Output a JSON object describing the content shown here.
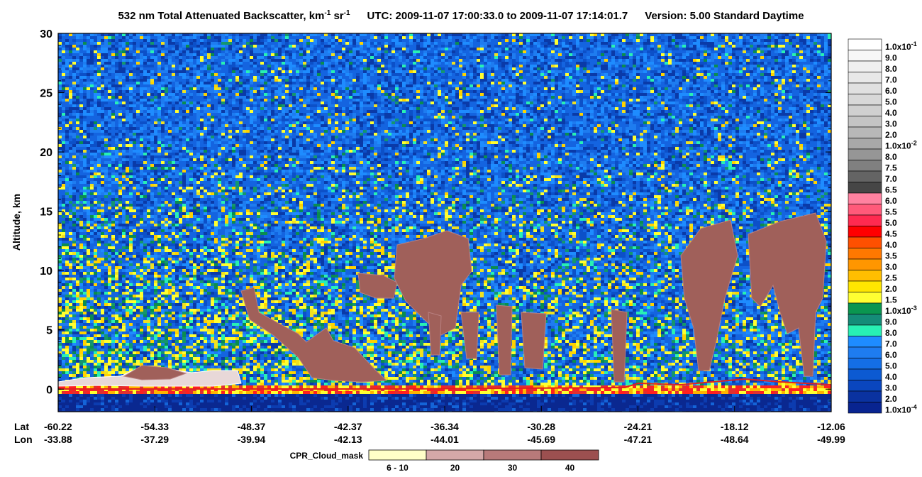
{
  "chart_data": {
    "type": "curtain",
    "title": {
      "part1": "532 nm Total Attenuated Backscatter, km",
      "exp1": "-1",
      "part2": " sr",
      "exp2": "-1",
      "utc": "UTC:  2009-11-07 17:00:33.0  to  2009-11-07 17:14:01.7",
      "version": "Version: 5.00  Standard  Daytime"
    },
    "y_label": "Altitude, km",
    "ylim": [
      -1.9,
      30
    ],
    "yticks": [
      0,
      5,
      10,
      15,
      20,
      25,
      30
    ],
    "lat_label": "Lat",
    "lon_label": "Lon",
    "lat_ticks": [
      -60.22,
      -54.33,
      -48.37,
      -42.37,
      -36.34,
      -30.28,
      -24.21,
      -18.12,
      -12.06
    ],
    "lon_ticks": [
      -33.88,
      -37.29,
      -39.94,
      -42.13,
      -44.01,
      -45.69,
      -47.21,
      -48.64,
      -49.99
    ],
    "colorbar": [
      {
        "label": "1.0x10",
        "exponent": "-1",
        "color": "#ffffff"
      },
      {
        "label": "9.0",
        "color": "#f7f7f7"
      },
      {
        "label": "8.0",
        "color": "#f0f0f0"
      },
      {
        "label": "7.0",
        "color": "#e8e8e8"
      },
      {
        "label": "6.0",
        "color": "#e0e0e0"
      },
      {
        "label": "5.0",
        "color": "#d8d8d8"
      },
      {
        "label": "4.0",
        "color": "#d0d0d0"
      },
      {
        "label": "3.0",
        "color": "#c4c4c4"
      },
      {
        "label": "2.0",
        "color": "#b8b8b8"
      },
      {
        "label": "1.0x10",
        "exponent": "-2",
        "color": "#a8a8a8"
      },
      {
        "label": "8.0",
        "color": "#969696"
      },
      {
        "label": "7.5",
        "color": "#808080"
      },
      {
        "label": "7.0",
        "color": "#646464"
      },
      {
        "label": "6.5",
        "color": "#464646"
      },
      {
        "label": "6.0",
        "color": "#ff82a0"
      },
      {
        "label": "5.5",
        "color": "#ff5a7a"
      },
      {
        "label": "5.0",
        "color": "#ff2a50"
      },
      {
        "label": "4.5",
        "color": "#ff0000"
      },
      {
        "label": "4.0",
        "color": "#ff5000"
      },
      {
        "label": "3.5",
        "color": "#ff7800"
      },
      {
        "label": "3.0",
        "color": "#ff9600"
      },
      {
        "label": "2.5",
        "color": "#ffbe00"
      },
      {
        "label": "2.0",
        "color": "#ffe600"
      },
      {
        "label": "1.5",
        "color": "#ffff32"
      },
      {
        "label": "1.0x10",
        "exponent": "-3",
        "color": "#0a9650"
      },
      {
        "label": "9.0",
        "color": "#148c78"
      },
      {
        "label": "8.0",
        "color": "#28f0b4"
      },
      {
        "label": "7.0",
        "color": "#1e8cff"
      },
      {
        "label": "6.0",
        "color": "#1e7cf0"
      },
      {
        "label": "5.0",
        "color": "#146ee6"
      },
      {
        "label": "4.0",
        "color": "#0c5ad2"
      },
      {
        "label": "3.0",
        "color": "#0a46be"
      },
      {
        "label": "2.0",
        "color": "#0a32a0"
      },
      {
        "label": "1.0x10",
        "exponent": "-4",
        "color": "#082490"
      }
    ],
    "mask_title": "CPR_Cloud_mask",
    "mask_legend": [
      {
        "label": "6 - 10",
        "color": "#ffffc8"
      },
      {
        "label": "20",
        "color": "#d4a8a8"
      },
      {
        "label": "30",
        "color": "#b87a7a"
      },
      {
        "label": "40",
        "color": "#9c5050"
      }
    ]
  }
}
